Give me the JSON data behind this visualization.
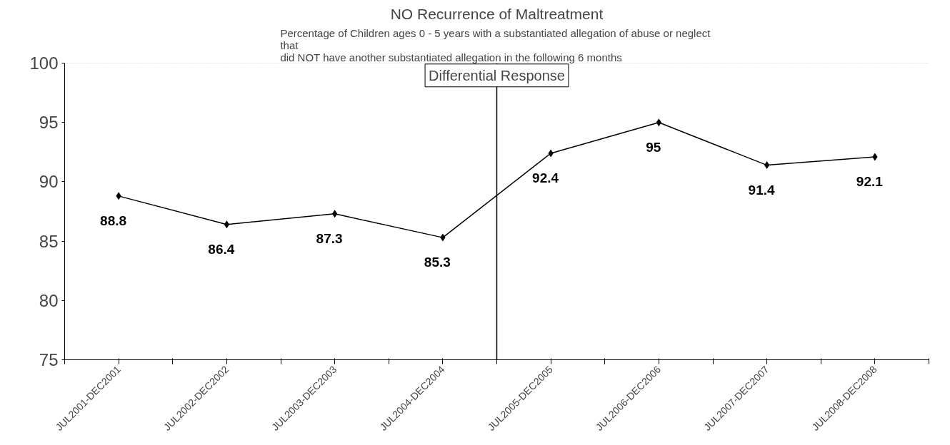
{
  "chart_data": {
    "type": "line",
    "title": "NO Recurrence of Maltreatment",
    "subtitle": "Percentage of Children  ages 0 - 5 years with a substantiated allegation of abuse or neglect\nthat\ndid NOT have another substantiated allegation in the following 6 months",
    "categories": [
      "JUL2001-DEC2001",
      "JUL2002-DEC2002",
      "JUL2003-DEC2003",
      "JUL2004-DEC2004",
      "JUL2005-DEC2005",
      "JUL2006-DEC2006",
      "JUL2007-DEC2007",
      "JUL2008-DEC2008"
    ],
    "series": [
      {
        "color": "#000000",
        "values": [
          88.8,
          86.4,
          87.3,
          85.3,
          92.4,
          95,
          91.4,
          92.1
        ]
      }
    ],
    "ylim": [
      75,
      100
    ],
    "yticks": [
      75,
      80,
      85,
      90,
      95,
      100
    ],
    "grid": false,
    "marker": "diamond",
    "line_style": "solid",
    "data_labels": true,
    "annotations": [
      "Differential Response"
    ]
  }
}
